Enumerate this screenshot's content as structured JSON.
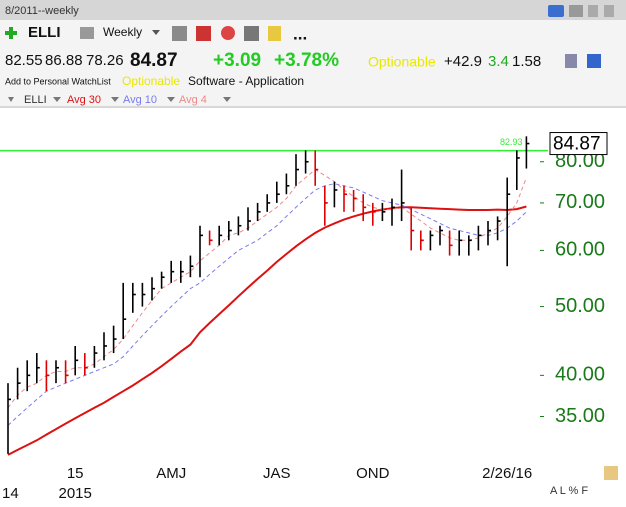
{
  "header": {
    "title": "8/2011--weekly",
    "symbol": "ELLI",
    "timeframe": "Weekly",
    "more": "...",
    "open": "82.55",
    "high": "86.88",
    "low": "78.26",
    "last": "84.87",
    "change": "+3.09",
    "change_pct": "+3.78%",
    "optionable": "Optionable",
    "stat1": "+42.9",
    "stat2": "3.4",
    "stat3": "1.58",
    "watchlist": "Add to Personal WatchList",
    "optionable_tag": "Optionable",
    "industry": "Software - Application",
    "corner": "A L % F"
  },
  "chart_data": {
    "type": "ohlc",
    "symbol": "ELLI",
    "log_scale": true,
    "up_color": "#000000",
    "down_color": "#dd0000",
    "categories": [
      null,
      null,
      null,
      null,
      null,
      null,
      null,
      "15",
      null,
      null,
      null,
      null,
      null,
      null,
      null,
      null,
      null,
      "AMJ",
      null,
      null,
      null,
      null,
      null,
      null,
      null,
      null,
      null,
      null,
      "JAS",
      null,
      null,
      null,
      null,
      null,
      null,
      null,
      null,
      null,
      "OND",
      null,
      null,
      null,
      null,
      null,
      null,
      null,
      null,
      null,
      null,
      null,
      null,
      null,
      "2/26/16",
      null,
      null
    ],
    "years": [
      "14",
      null,
      null,
      null,
      null,
      null,
      null,
      "2015",
      null,
      null,
      null,
      null,
      null,
      null,
      null,
      null,
      null,
      null,
      null,
      null,
      null,
      null,
      null,
      null,
      null,
      null,
      null,
      null,
      null,
      null,
      null,
      null,
      null,
      null,
      null,
      null,
      null,
      null,
      null,
      null,
      null,
      null,
      null,
      null,
      null,
      null,
      null,
      null,
      null,
      null,
      null,
      null,
      null,
      null,
      null
    ],
    "high": [
      39,
      41,
      42,
      43,
      42,
      42,
      42,
      44,
      43,
      44,
      46,
      47,
      54,
      54,
      54,
      55,
      56,
      58,
      58,
      59,
      65,
      64,
      65,
      66,
      67,
      69,
      70,
      72,
      75,
      77,
      82,
      83,
      83,
      74,
      75,
      74,
      73,
      72,
      70,
      70,
      71,
      78,
      69,
      64,
      64,
      65,
      64,
      64,
      63,
      65,
      66,
      67,
      76,
      83,
      86.88
    ],
    "low": [
      31,
      37,
      38,
      39,
      38,
      39,
      39,
      40,
      40,
      41,
      42,
      43,
      45,
      49,
      50,
      51,
      53,
      54,
      54,
      55,
      55,
      61,
      61,
      62,
      63,
      64,
      66,
      68,
      70,
      72,
      74,
      77,
      74,
      65,
      69,
      68,
      68,
      66,
      65,
      66,
      65,
      66,
      60,
      60,
      60,
      61,
      59,
      59,
      59,
      60,
      61,
      62,
      57,
      73,
      78.26
    ],
    "close": [
      37,
      39,
      40,
      41,
      40,
      41,
      40,
      42,
      41,
      43,
      44,
      45,
      48,
      52,
      52,
      53,
      55,
      56,
      56,
      57,
      63,
      62,
      63,
      64,
      65,
      66,
      68,
      70,
      72,
      74,
      78,
      80,
      78,
      70,
      73,
      72,
      71,
      69,
      68,
      68,
      69,
      70,
      64,
      62,
      63,
      64,
      61,
      62,
      62,
      63,
      64,
      66,
      72,
      81,
      84.87
    ],
    "series": [
      {
        "name": "Avg 30",
        "color": "#dd1111",
        "dashed": false,
        "values": [
          30.9,
          31.4,
          31.9,
          32.4,
          33,
          33.6,
          34.2,
          34.8,
          35.4,
          36,
          36.6,
          37.3,
          38,
          38.7,
          39.5,
          40.3,
          41.2,
          42.2,
          43.2,
          44.2,
          46,
          47.4,
          48.8,
          50.2,
          51.7,
          53.2,
          54.7,
          56.2,
          57.8,
          59.3,
          60.8,
          62.2,
          63.5,
          64.6,
          65.5,
          66.3,
          67,
          67.6,
          68.1,
          68.5,
          68.8,
          69,
          69,
          68.9,
          68.8,
          68.7,
          68.6,
          68.5,
          68.4,
          68.4,
          68.4,
          68.5,
          68.4,
          68.6,
          69.2
        ]
      },
      {
        "name": "Avg 10",
        "color": "#7a7aee",
        "dashed": true,
        "values": [
          34,
          35,
          36,
          37,
          38,
          38.5,
          39,
          39.5,
          40,
          40.5,
          41,
          41.5,
          42.5,
          44,
          45.5,
          47,
          48.5,
          50,
          51.5,
          53,
          54,
          55.5,
          57,
          58.5,
          60,
          61,
          62,
          63.5,
          65,
          67,
          69,
          71,
          73,
          74,
          74.5,
          74,
          73.5,
          72.5,
          71.5,
          70.5,
          70,
          69.5,
          68.5,
          67.5,
          66.5,
          65.5,
          64.5,
          64,
          63.5,
          63,
          63,
          63.5,
          64.5,
          66,
          68
        ]
      },
      {
        "name": "Avg 4",
        "color": "#ee8888",
        "dashed": true,
        "values": [
          36,
          37.5,
          38.5,
          39,
          40,
          40.5,
          40.5,
          41,
          41,
          41.5,
          42.5,
          43.5,
          45,
          47,
          49,
          51,
          53,
          54,
          55,
          56,
          58,
          59.5,
          61,
          63,
          63.5,
          64.5,
          66,
          67.5,
          69,
          71,
          74,
          76,
          78,
          76.5,
          75,
          73,
          71.5,
          70,
          69,
          68.5,
          68.5,
          69,
          67.5,
          66,
          64.5,
          63.5,
          62.5,
          62,
          62,
          62.5,
          63.5,
          64.5,
          67,
          70,
          76
        ]
      }
    ],
    "ylim": [
      30,
      100
    ],
    "yticks": [
      {
        "value": 35,
        "label": "35.00"
      },
      {
        "value": 40,
        "label": "40.00"
      },
      {
        "value": 50,
        "label": "50.00"
      },
      {
        "value": 60,
        "label": "60.00"
      },
      {
        "value": 70,
        "label": "70.00"
      },
      {
        "value": 80,
        "label": "80.00"
      }
    ],
    "tick_color": "#1a7a1a",
    "level": {
      "value": 82.93,
      "color": "#33ee33"
    },
    "last_label": 84.87
  }
}
